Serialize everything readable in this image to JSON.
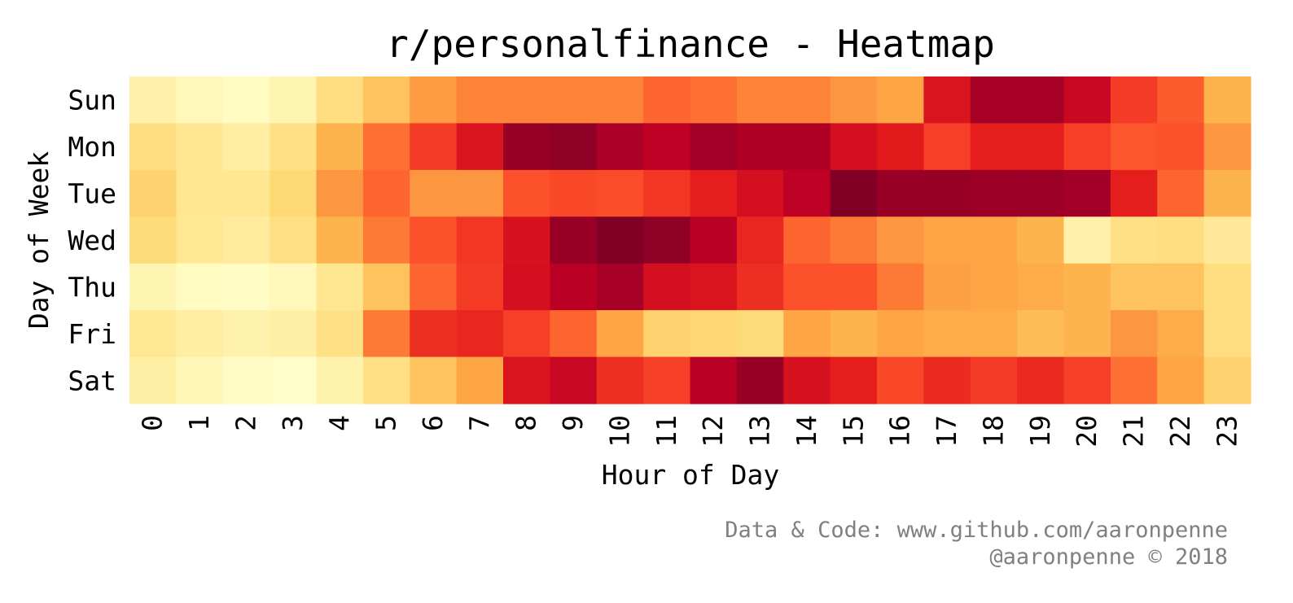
{
  "chart_data": {
    "type": "heatmap",
    "title": "r/personalfinance - Heatmap",
    "xlabel": "Hour of Day",
    "ylabel": "Day of Week",
    "x_categories": [
      "0",
      "1",
      "2",
      "3",
      "4",
      "5",
      "6",
      "7",
      "8",
      "9",
      "10",
      "11",
      "12",
      "13",
      "14",
      "15",
      "16",
      "17",
      "18",
      "19",
      "20",
      "21",
      "22",
      "23"
    ],
    "y_categories": [
      "Sun",
      "Mon",
      "Tue",
      "Wed",
      "Thu",
      "Fri",
      "Sat"
    ],
    "colormap": "YlOrRd",
    "colormap_stops": [
      "#ffffcc",
      "#ffeda0",
      "#fed976",
      "#feb24c",
      "#fd8d3c",
      "#fc4e2a",
      "#e31a1c",
      "#bd0026",
      "#800026"
    ],
    "colorbar": false,
    "grid": false,
    "values": [
      [
        0.1,
        0.05,
        0.03,
        0.07,
        0.22,
        0.32,
        0.45,
        0.52,
        0.52,
        0.52,
        0.52,
        0.58,
        0.56,
        0.52,
        0.52,
        0.47,
        0.42,
        0.78,
        0.92,
        0.92,
        0.84,
        0.67,
        0.6,
        0.37
      ],
      [
        0.22,
        0.17,
        0.12,
        0.2,
        0.37,
        0.56,
        0.67,
        0.78,
        0.95,
        0.97,
        0.91,
        0.87,
        0.93,
        0.9,
        0.9,
        0.8,
        0.75,
        0.66,
        0.74,
        0.74,
        0.66,
        0.61,
        0.62,
        0.47
      ],
      [
        0.27,
        0.17,
        0.17,
        0.25,
        0.47,
        0.58,
        0.47,
        0.47,
        0.62,
        0.64,
        0.63,
        0.68,
        0.74,
        0.8,
        0.87,
        1.0,
        0.95,
        0.95,
        0.94,
        0.94,
        0.93,
        0.74,
        0.58,
        0.37
      ],
      [
        0.24,
        0.16,
        0.14,
        0.21,
        0.37,
        0.54,
        0.62,
        0.68,
        0.79,
        0.95,
        1.0,
        0.97,
        0.88,
        0.72,
        0.58,
        0.54,
        0.47,
        0.42,
        0.42,
        0.37,
        0.1,
        0.2,
        0.22,
        0.15
      ],
      [
        0.07,
        0.03,
        0.02,
        0.05,
        0.17,
        0.32,
        0.58,
        0.67,
        0.8,
        0.88,
        0.92,
        0.8,
        0.78,
        0.7,
        0.62,
        0.62,
        0.54,
        0.44,
        0.42,
        0.4,
        0.37,
        0.32,
        0.32,
        0.22
      ],
      [
        0.16,
        0.12,
        0.09,
        0.11,
        0.2,
        0.54,
        0.7,
        0.72,
        0.66,
        0.58,
        0.42,
        0.27,
        0.26,
        0.24,
        0.42,
        0.37,
        0.42,
        0.4,
        0.4,
        0.34,
        0.37,
        0.47,
        0.4,
        0.22
      ],
      [
        0.11,
        0.06,
        0.02,
        0.01,
        0.09,
        0.21,
        0.32,
        0.42,
        0.78,
        0.84,
        0.7,
        0.66,
        0.88,
        0.95,
        0.79,
        0.74,
        0.64,
        0.71,
        0.67,
        0.71,
        0.66,
        0.56,
        0.42,
        0.27
      ]
    ]
  },
  "credits": {
    "line1": "Data & Code: www.github.com/aaronpenne",
    "line2": "@aaronpenne © 2018"
  }
}
